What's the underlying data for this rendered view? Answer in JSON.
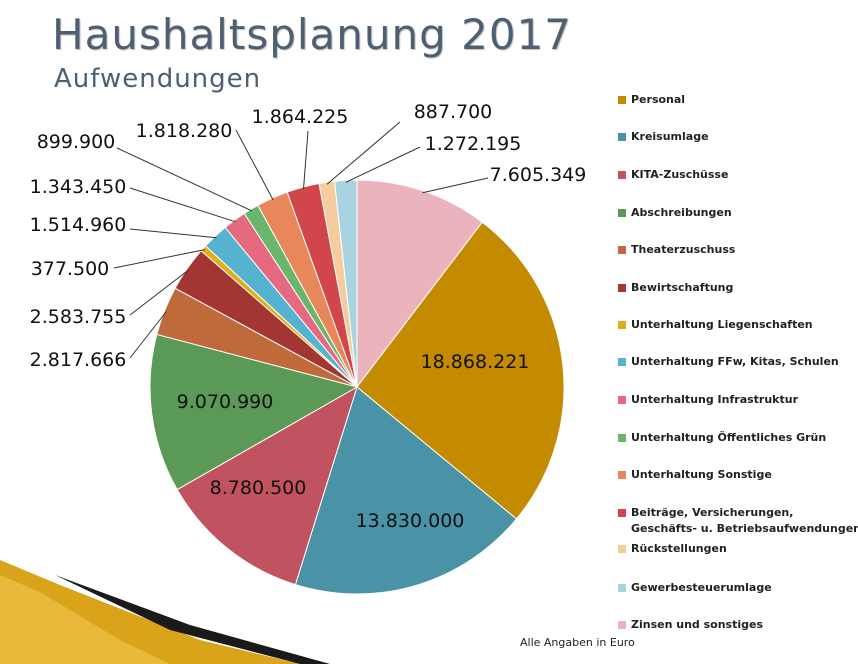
{
  "colors": {
    "title": "#4d5f72",
    "decoration_gold": "#d9a31a",
    "decoration_dark": "#1a1a1a"
  },
  "footnote": "Alle Angaben in Euro",
  "chart_data": {
    "type": "pie",
    "title": "Haushaltsplanung 2017",
    "subtitle": "Aufwendungen",
    "legend_position": "right",
    "start": "12 o'clock, clockwise starting with Zinsen und sonstiges",
    "categories": [
      "Personal",
      "Kreisumlage",
      "KITA-Zuschüsse",
      "Abschreibungen",
      "Theaterzuschuss",
      "Bewirtschaftung",
      "Unterhaltung Liegenschaften",
      "Unterhaltung FFw, Kitas, Schulen",
      "Unterhaltung Infrastruktur",
      "Unterhaltung Öffentliches Grün",
      "Unterhaltung Sonstige",
      "Beiträge, Versicherungen,\nGeschäfts- u. Betriebsaufwendungen",
      "Rückstellungen",
      "Gewerbesteuerumlage",
      "Zinsen und sonstiges"
    ],
    "values": [
      18868221,
      13830000,
      8780500,
      9070990,
      2817666,
      2583755,
      377500,
      1514960,
      1343450,
      899900,
      1818280,
      1864225,
      887700,
      1272195,
      7605349
    ],
    "labels": [
      "18.868.221",
      "13.830.000",
      "8.780.500",
      "9.070.990",
      "2.817.666",
      "2.583.755",
      "377.500",
      "1.514.960",
      "1.343.450",
      "899.900",
      "1.818.280",
      "1.864.225",
      "887.700",
      "1.272.195",
      "7.605.349"
    ],
    "colors": [
      "#c48a00",
      "#4a93a7",
      "#c0535f",
      "#5a9a56",
      "#c06a3c",
      "#a33533",
      "#e3ad1a",
      "#56b3cf",
      "#e56a7f",
      "#6bb66d",
      "#e8885a",
      "#d0464a",
      "#f6cc9e",
      "#aad3e2",
      "#ebb4bc"
    ]
  }
}
